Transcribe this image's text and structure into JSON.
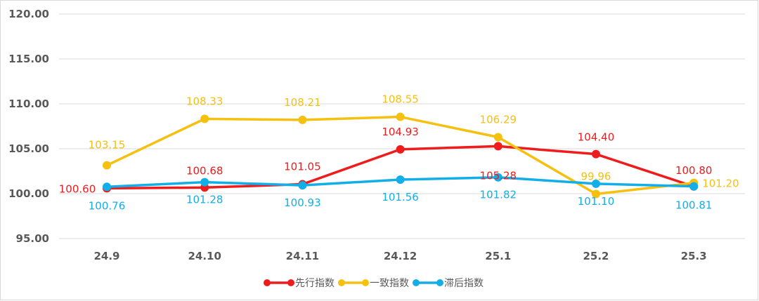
{
  "chart_data": {
    "type": "line",
    "categories": [
      "24.9",
      "24.10",
      "24.11",
      "24.12",
      "25.1",
      "25.2",
      "25.3"
    ],
    "ylim": [
      95,
      120
    ],
    "yticks": [
      "95.00",
      "100.00",
      "105.00",
      "110.00",
      "115.00",
      "120.00"
    ],
    "grid": true,
    "legend_position": "bottom",
    "series": [
      {
        "name": "先行指数",
        "color": "#ee1c1c",
        "values": [
          100.6,
          100.68,
          101.05,
          104.93,
          105.28,
          104.4,
          100.8
        ],
        "labels": [
          "100.60",
          "100.68",
          "101.05",
          "104.93",
          "105.28",
          "104.40",
          "100.80"
        ]
      },
      {
        "name": "一致指数",
        "color": "#f5c010",
        "values": [
          103.15,
          108.33,
          108.21,
          108.55,
          106.29,
          99.96,
          101.2
        ],
        "labels": [
          "103.15",
          "108.33",
          "108.21",
          "108.55",
          "106.29",
          "99.96",
          "101.20"
        ]
      },
      {
        "name": "滞后指数",
        "color": "#12aee8",
        "values": [
          100.76,
          101.28,
          100.93,
          101.56,
          101.82,
          101.1,
          100.81
        ],
        "labels": [
          "100.76",
          "101.28",
          "100.93",
          "101.56",
          "101.82",
          "101.10",
          "100.81"
        ]
      }
    ]
  }
}
